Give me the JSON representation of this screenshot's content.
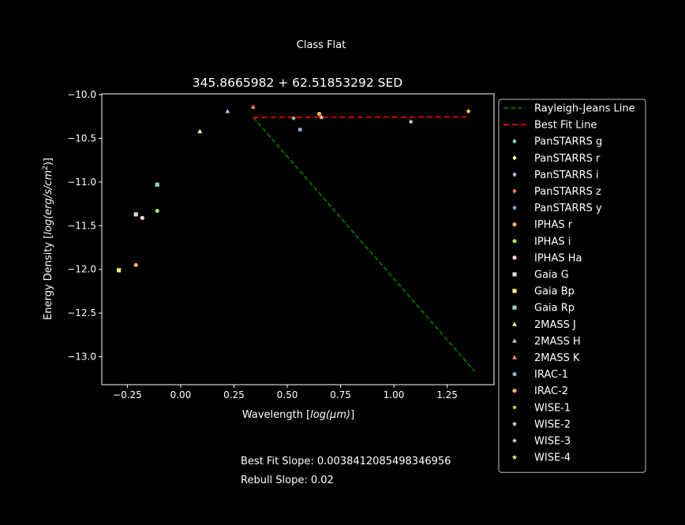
{
  "suptitle": "Class Flat",
  "footer": {
    "best_fit_slope": "Best Fit Slope: 0.003841208549834695​6",
    "rebull_slope": "Rebull Slope: 0.02"
  },
  "chart_data": {
    "type": "scatter",
    "title": "345.8665982 + 62.51853292 SED",
    "xlabel": "Wavelength [log(μm)]",
    "ylabel": "Energy Density [log(erg/s/cm²)]",
    "xlim": [
      -0.37,
      1.47
    ],
    "ylim": [
      -13.32,
      -9.99
    ],
    "xticks": [
      -0.25,
      0.0,
      0.25,
      0.5,
      0.75,
      1.0,
      1.25
    ],
    "xtick_labels": [
      "−0.25",
      "0.00",
      "0.25",
      "0.50",
      "0.75",
      "1.00",
      "1.25"
    ],
    "yticks": [
      -10.0,
      -10.5,
      -11.0,
      -11.5,
      -12.0,
      -12.5,
      -13.0
    ],
    "ytick_labels": [
      "−10.0",
      "−10.5",
      "−11.0",
      "−11.5",
      "−12.0",
      "−12.5",
      "−13.0"
    ],
    "legend_position": "outside-right",
    "lines": [
      {
        "name": "Rayleigh-Jeans Line",
        "color": "#008000",
        "dash": "6,3",
        "x": [
          0.34,
          1.38
        ],
        "y": [
          -10.26,
          -13.17
        ]
      },
      {
        "name": "Best Fit Line",
        "color": "#ff0000",
        "dash": "7,4",
        "x": [
          0.34,
          1.34
        ],
        "y": [
          -10.26,
          -10.255
        ]
      }
    ],
    "series": [
      {
        "name": "PanSTARRS g",
        "marker": "diamond",
        "color": "#8dd3c7",
        "x": [],
        "y": []
      },
      {
        "name": "PanSTARRS r",
        "marker": "diamond",
        "color": "#ffffb3",
        "x": [],
        "y": []
      },
      {
        "name": "PanSTARRS i",
        "marker": "diamond",
        "color": "#bebada",
        "x": [],
        "y": []
      },
      {
        "name": "PanSTARRS z",
        "marker": "diamond",
        "color": "#fb8072",
        "x": [],
        "y": []
      },
      {
        "name": "PanSTARRS y",
        "marker": "diamond",
        "color": "#80b1d3",
        "x": [],
        "y": []
      },
      {
        "name": "IPHAS r",
        "marker": "circle",
        "color": "#fdb462",
        "x": [
          -0.21
        ],
        "y": [
          -11.95
        ]
      },
      {
        "name": "IPHAS i",
        "marker": "circle",
        "color": "#b3de69",
        "x": [
          -0.11
        ],
        "y": [
          -11.33
        ]
      },
      {
        "name": "IPHAS Ha",
        "marker": "circle",
        "color": "#fccde5",
        "x": [
          -0.18
        ],
        "y": [
          -11.41
        ]
      },
      {
        "name": "Gaia G",
        "marker": "square",
        "color": "#d9d9d9",
        "x": [
          -0.21
        ],
        "y": [
          -11.37
        ]
      },
      {
        "name": "Gaia Bp",
        "marker": "square",
        "color": "#ffed6f",
        "x": [
          -0.29
        ],
        "y": [
          -12.01
        ]
      },
      {
        "name": "Gaia Rp",
        "marker": "square",
        "color": "#8dd3c7",
        "x": [
          -0.11
        ],
        "y": [
          -11.03
        ]
      },
      {
        "name": "2MASS J",
        "marker": "triangle",
        "color": "#ffffb3",
        "x": [
          0.09
        ],
        "y": [
          -10.42
        ]
      },
      {
        "name": "2MASS H",
        "marker": "triangle",
        "color": "#bebada",
        "x": [
          0.22
        ],
        "y": [
          -10.19
        ]
      },
      {
        "name": "2MASS K",
        "marker": "triangle",
        "color": "#fb8072",
        "x": [
          0.34
        ],
        "y": [
          -10.14
        ]
      },
      {
        "name": "IRAC-1",
        "marker": "circle",
        "color": "#80b1d3",
        "x": [
          0.56
        ],
        "y": [
          -10.4
        ]
      },
      {
        "name": "IRAC-2",
        "marker": "circle",
        "color": "#fdb462",
        "x": [
          0.65
        ],
        "y": [
          -10.22
        ]
      },
      {
        "name": "WISE-1",
        "marker": "star",
        "color": "#b3de69",
        "x": [
          0.53
        ],
        "y": [
          -10.27
        ]
      },
      {
        "name": "WISE-2",
        "marker": "star",
        "color": "#fccde5",
        "x": [
          0.66
        ],
        "y": [
          -10.26
        ]
      },
      {
        "name": "WISE-3",
        "marker": "star",
        "color": "#d9d9d9",
        "x": [
          1.08
        ],
        "y": [
          -10.31
        ]
      },
      {
        "name": "WISE-4",
        "marker": "star",
        "color": "#ffed6f",
        "x": [
          1.35
        ],
        "y": [
          -10.19
        ]
      }
    ]
  }
}
